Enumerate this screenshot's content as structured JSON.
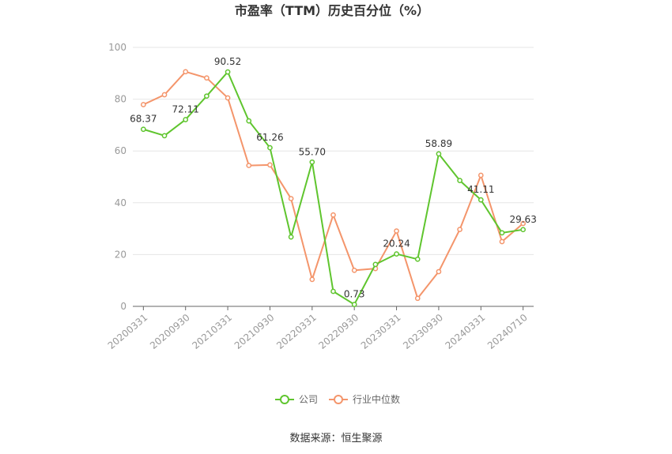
{
  "chart_data": {
    "type": "line",
    "title": "市盈率（TTM）历史百分位（%）",
    "xlabel": "",
    "ylabel": "",
    "ylim": [
      0,
      100
    ],
    "yticks": [
      "0",
      "20",
      "40",
      "60",
      "80",
      "100"
    ],
    "x": [
      "20200331",
      "20200630",
      "20200930",
      "20201231",
      "20210331",
      "20210630",
      "20210930",
      "20211231",
      "20220331",
      "20220630",
      "20220930",
      "20221231",
      "20230331",
      "20230630",
      "20230930",
      "20231231",
      "20240331",
      "20240630",
      "20240710"
    ],
    "xtick_labels": [
      "20200331",
      "20200930",
      "20210331",
      "20210930",
      "20220331",
      "20220930",
      "20230331",
      "20230930",
      "20240331",
      "20240710"
    ],
    "grid": true,
    "legend_position": "bottom",
    "series": [
      {
        "name": "公司",
        "color": "#5fc52e",
        "values": [
          68.37,
          65.9,
          72.11,
          81.2,
          90.52,
          71.6,
          61.26,
          26.8,
          55.7,
          5.8,
          0.73,
          16.2,
          20.24,
          18.2,
          58.89,
          48.6,
          41.11,
          28.4,
          29.63
        ],
        "labels": [
          "68.37",
          "",
          "72.11",
          "",
          "90.52",
          "",
          "61.26",
          "",
          "55.70",
          "",
          "0.73",
          "",
          "20.24",
          "",
          "58.89",
          "",
          "41.11",
          "",
          "29.63"
        ]
      },
      {
        "name": "行业中位数",
        "color": "#f4956b",
        "values": [
          77.9,
          81.7,
          90.6,
          88.2,
          80.5,
          54.4,
          54.6,
          41.6,
          10.4,
          35.3,
          13.9,
          14.6,
          29.1,
          3.1,
          13.4,
          29.7,
          50.6,
          25.0,
          32.0
        ]
      }
    ],
    "source": "数据来源：恒生聚源"
  }
}
